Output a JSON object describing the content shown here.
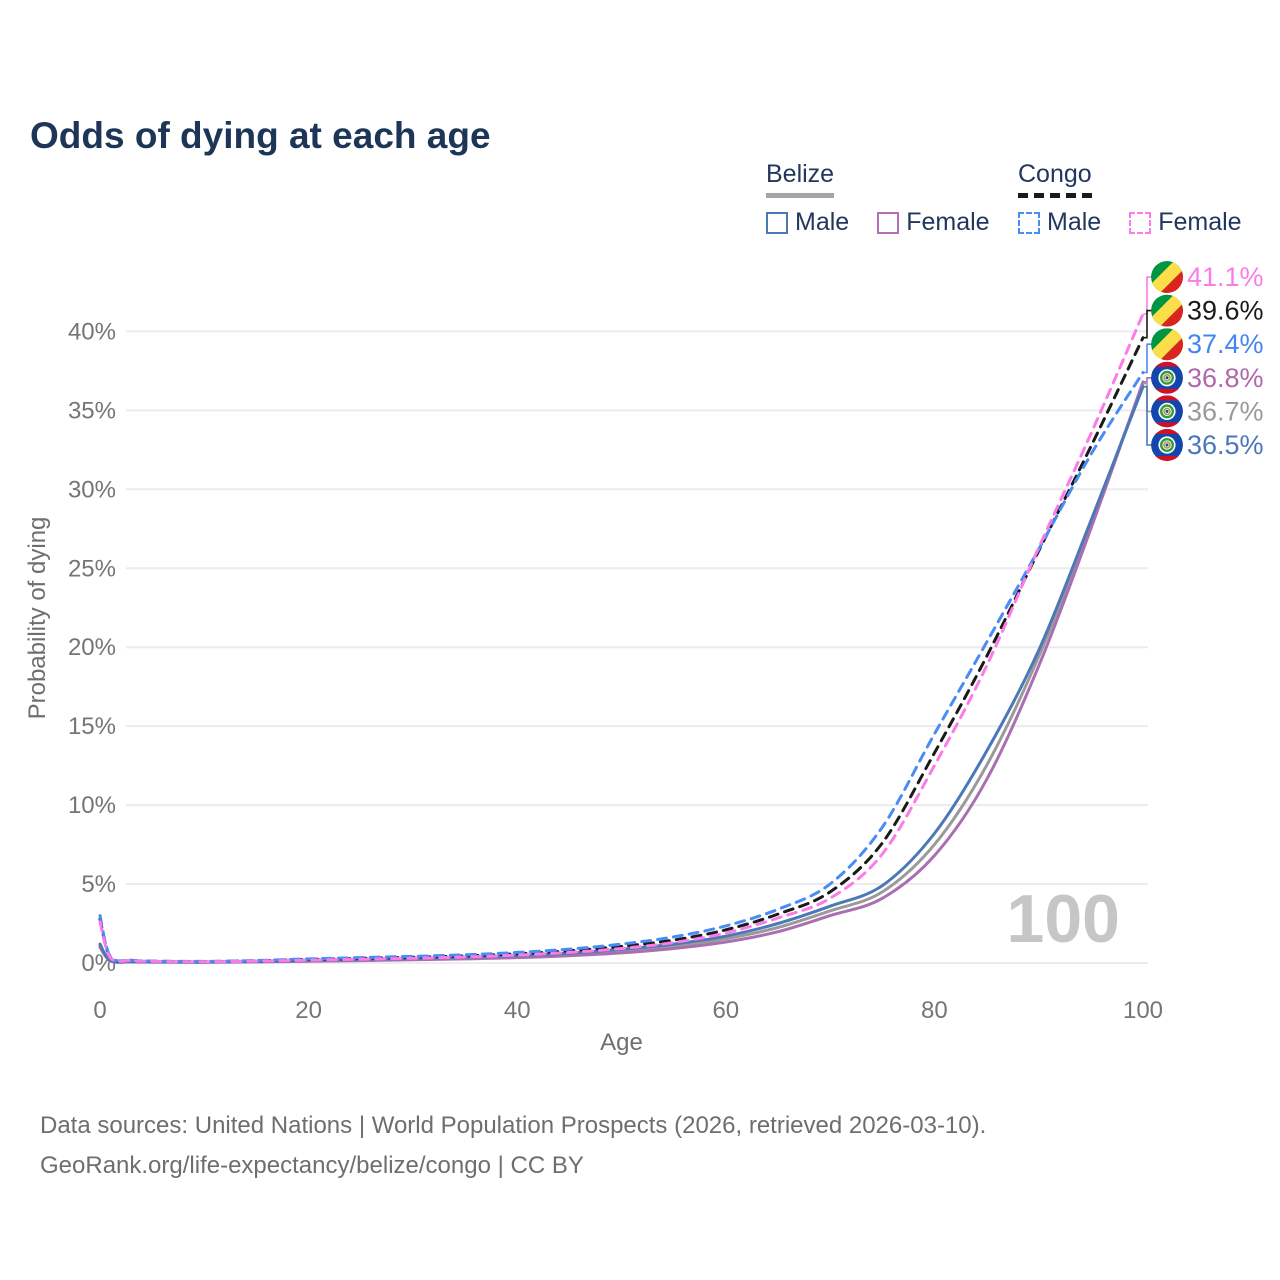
{
  "title": "Odds of dying at each age",
  "legend": {
    "groups": [
      {
        "label": "Belize",
        "line_style": "solid",
        "underline_color": "#a5a5a5",
        "items": [
          {
            "label": "Male",
            "color": "#4c78b6",
            "dashed": false
          },
          {
            "label": "Female",
            "color": "#b270b4",
            "dashed": false
          }
        ]
      },
      {
        "label": "Congo",
        "line_style": "dashed",
        "underline_color": "#1a1a1a",
        "items": [
          {
            "label": "Male",
            "color": "#4a8cf5",
            "dashed": true
          },
          {
            "label": "Female",
            "color": "#fb7ce8",
            "dashed": true
          }
        ]
      }
    ]
  },
  "watermark": "100",
  "footer": {
    "line1": "Data sources: United Nations | World Population Prospects (2026, retrieved 2026-03-10).",
    "line2": "GeoRank.org/life-expectancy/belize/congo | CC BY"
  },
  "chart_data": {
    "type": "line",
    "title": "Odds of dying at each age",
    "xlabel": "Age",
    "ylabel": "Probability of dying",
    "xlim": [
      0,
      100
    ],
    "ylim_pct": [
      0,
      43
    ],
    "xticks": [
      0,
      20,
      40,
      60,
      80,
      100
    ],
    "yticks_pct": [
      0,
      5,
      10,
      15,
      20,
      25,
      30,
      35,
      40
    ],
    "ytick_suffix": "%",
    "grid": "horizontal",
    "legend_position": "top-right",
    "x_ages": [
      0,
      1,
      3,
      5,
      10,
      15,
      20,
      25,
      30,
      35,
      40,
      45,
      50,
      55,
      60,
      65,
      70,
      75,
      80,
      85,
      90,
      95,
      100
    ],
    "series": [
      {
        "id": "belize-overall",
        "name": "Belize",
        "country": "Belize",
        "sex": "All",
        "color": "#9a9a9a",
        "dashed": false,
        "flag": "belize",
        "end_label": "36.7%",
        "end_label_color": "#9a9a9a",
        "label_row": 4,
        "values_pct": [
          1.1,
          0.14,
          0.08,
          0.065,
          0.055,
          0.085,
          0.14,
          0.19,
          0.24,
          0.31,
          0.41,
          0.55,
          0.76,
          1.07,
          1.53,
          2.25,
          3.3,
          4.5,
          7.5,
          12.5,
          19.4,
          27.8,
          36.7
        ]
      },
      {
        "id": "belize-female",
        "name": "Belize Female",
        "country": "Belize",
        "sex": "Female",
        "color": "#a96fb2",
        "dashed": false,
        "flag": "belize",
        "end_label": "36.8%",
        "end_label_color": "#b168ab",
        "label_row": 3,
        "values_pct": [
          1.0,
          0.13,
          0.07,
          0.06,
          0.05,
          0.07,
          0.11,
          0.15,
          0.2,
          0.26,
          0.34,
          0.46,
          0.64,
          0.92,
          1.33,
          1.98,
          3.0,
          4.1,
          6.8,
          11.6,
          18.8,
          27.5,
          36.8
        ]
      },
      {
        "id": "belize-male",
        "name": "Belize Male",
        "country": "Belize",
        "sex": "Male",
        "color": "#4c78b6",
        "dashed": false,
        "flag": "belize",
        "end_label": "36.5%",
        "end_label_color": "#4b77b8",
        "label_row": 5,
        "values_pct": [
          1.2,
          0.16,
          0.09,
          0.07,
          0.06,
          0.1,
          0.17,
          0.23,
          0.29,
          0.36,
          0.47,
          0.63,
          0.87,
          1.2,
          1.7,
          2.5,
          3.6,
          4.9,
          8.2,
          13.4,
          19.8,
          28.0,
          36.5
        ]
      },
      {
        "id": "congo-overall",
        "name": "Congo",
        "country": "Congo",
        "sex": "All",
        "color": "#1a1a1a",
        "dashed": true,
        "flag": "congo",
        "end_label": "39.6%",
        "end_label_color": "#1a1a1a",
        "label_row": 1,
        "values_pct": [
          2.8,
          0.36,
          0.16,
          0.11,
          0.09,
          0.14,
          0.22,
          0.29,
          0.36,
          0.45,
          0.58,
          0.77,
          1.05,
          1.45,
          2.1,
          3.1,
          4.5,
          7.6,
          13.3,
          19.4,
          26.1,
          32.7,
          39.6
        ]
      },
      {
        "id": "congo-male",
        "name": "Congo Male",
        "country": "Congo",
        "sex": "Male",
        "color": "#4a8cf5",
        "dashed": true,
        "flag": "congo",
        "end_label": "37.4%",
        "end_label_color": "#4286f4",
        "label_row": 2,
        "values_pct": [
          3.0,
          0.4,
          0.18,
          0.12,
          0.1,
          0.16,
          0.26,
          0.34,
          0.42,
          0.52,
          0.67,
          0.88,
          1.2,
          1.65,
          2.35,
          3.4,
          5.0,
          8.6,
          14.5,
          20.3,
          26.2,
          32.2,
          37.4
        ]
      },
      {
        "id": "congo-female",
        "name": "Congo Female",
        "country": "Congo",
        "sex": "Female",
        "color": "#fb7ce8",
        "dashed": true,
        "flag": "congo",
        "end_label": "41.1%",
        "end_label_color": "#fb7ce8",
        "label_row": 0,
        "values_pct": [
          2.6,
          0.33,
          0.15,
          0.1,
          0.08,
          0.12,
          0.18,
          0.24,
          0.3,
          0.38,
          0.5,
          0.67,
          0.92,
          1.3,
          1.9,
          2.85,
          4.1,
          6.9,
          12.5,
          18.8,
          26.3,
          33.5,
          41.1
        ]
      }
    ]
  }
}
